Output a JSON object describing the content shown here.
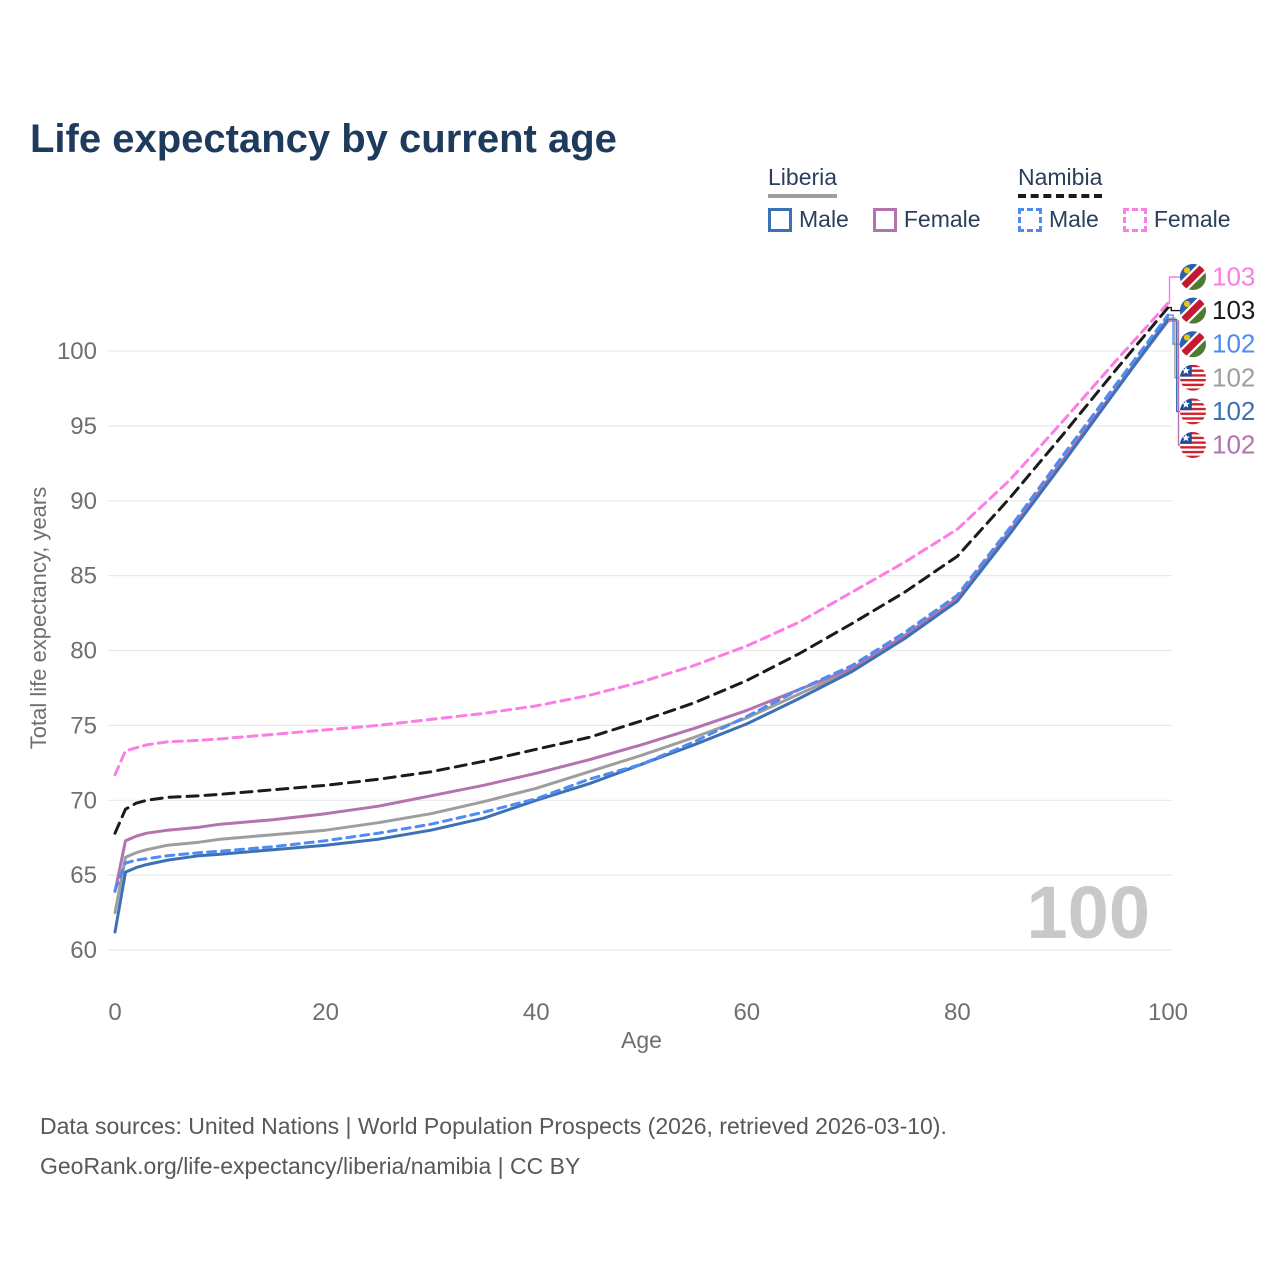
{
  "title": "Life expectancy by current age",
  "legend": {
    "groups": [
      {
        "label": "Liberia",
        "line_style": "solid",
        "line_color": "#9e9e9e",
        "items": [
          {
            "label": "Male",
            "color": "#3c72b5",
            "dash": false
          },
          {
            "label": "Female",
            "color": "#b273ae",
            "dash": false
          }
        ]
      },
      {
        "label": "Namibia",
        "line_style": "dashed",
        "line_color": "#1b1b1b",
        "items": [
          {
            "label": "Male",
            "color": "#4f8bf2",
            "dash": true
          },
          {
            "label": "Female",
            "color": "#fc7de4",
            "dash": true
          }
        ]
      }
    ]
  },
  "footer": {
    "line1": "Data sources: United Nations | World Population Prospects (2026, retrieved 2026-03-10).",
    "line2": "GeoRank.org/life-expectancy/liberia/namibia | CC BY"
  },
  "chart_data": {
    "type": "line",
    "title": "Life expectancy by current age",
    "xlabel": "Age",
    "ylabel": "Total life expectancy, years",
    "xlim": [
      0,
      100
    ],
    "ylim": [
      58.5,
      104.5
    ],
    "xticks": [
      0,
      20,
      40,
      60,
      80,
      100
    ],
    "yticks": [
      60,
      65,
      70,
      75,
      80,
      85,
      90,
      95,
      100
    ],
    "grid": "horizontal",
    "legend_position": "top-right",
    "watermark": "100",
    "x": [
      0,
      1,
      2,
      3,
      5,
      8,
      10,
      15,
      20,
      25,
      30,
      35,
      40,
      45,
      50,
      55,
      60,
      65,
      70,
      75,
      80,
      85,
      90,
      95,
      100
    ],
    "series": [
      {
        "id": "liberia-total",
        "name": "Liberia Both sexes",
        "color": "#9e9e9e",
        "dash": null,
        "values": [
          62.5,
          66.2,
          66.5,
          66.7,
          67.0,
          67.2,
          67.4,
          67.7,
          68.0,
          68.5,
          69.1,
          69.9,
          70.8,
          71.9,
          73.0,
          74.2,
          75.5,
          77.1,
          78.7,
          80.9,
          83.4,
          87.9,
          92.6,
          97.4,
          102.2
        ]
      },
      {
        "id": "liberia-female",
        "name": "Liberia Female",
        "color": "#b273ae",
        "dash": null,
        "values": [
          63.9,
          67.3,
          67.6,
          67.8,
          68.0,
          68.2,
          68.4,
          68.7,
          69.1,
          69.6,
          70.3,
          71.0,
          71.8,
          72.7,
          73.7,
          74.8,
          76.0,
          77.4,
          78.8,
          81.0,
          83.5,
          88.0,
          92.7,
          97.4,
          102.0
        ]
      },
      {
        "id": "liberia-male",
        "name": "Liberia Male",
        "color": "#3c72b5",
        "dash": null,
        "values": [
          61.2,
          65.2,
          65.5,
          65.7,
          66.0,
          66.3,
          66.4,
          66.7,
          67.0,
          67.4,
          68.0,
          68.8,
          70.0,
          71.1,
          72.4,
          73.7,
          75.1,
          76.8,
          78.6,
          80.8,
          83.3,
          87.8,
          92.5,
          97.3,
          102.1
        ]
      },
      {
        "id": "namibia-total",
        "name": "Namibia Both sexes",
        "color": "#1b1b1b",
        "dash": "11 7",
        "values": [
          67.8,
          69.4,
          69.8,
          70.0,
          70.2,
          70.3,
          70.4,
          70.7,
          71.0,
          71.4,
          71.9,
          72.6,
          73.4,
          74.2,
          75.3,
          76.5,
          78.0,
          79.8,
          81.8,
          83.9,
          86.3,
          90.2,
          94.4,
          98.7,
          102.9
        ]
      },
      {
        "id": "namibia-female",
        "name": "Namibia Female",
        "color": "#fc7de4",
        "dash": "9 6",
        "values": [
          71.7,
          73.3,
          73.5,
          73.7,
          73.9,
          74.0,
          74.1,
          74.4,
          74.7,
          75.0,
          75.4,
          75.8,
          76.3,
          77.0,
          77.9,
          79.0,
          80.3,
          81.9,
          83.9,
          85.9,
          88.1,
          91.4,
          95.3,
          99.3,
          103.2
        ]
      },
      {
        "id": "namibia-male",
        "name": "Namibia Male",
        "color": "#4f8bf2",
        "dash": "8 6",
        "values": [
          64.0,
          65.8,
          66.0,
          66.1,
          66.3,
          66.5,
          66.6,
          66.9,
          67.3,
          67.8,
          68.4,
          69.2,
          70.1,
          71.4,
          72.4,
          73.9,
          75.6,
          77.4,
          79.0,
          81.2,
          83.7,
          88.2,
          93.0,
          97.7,
          102.4
        ]
      }
    ],
    "end_labels": [
      {
        "series": "namibia-female",
        "flag": "namibia",
        "value": "103"
      },
      {
        "series": "namibia-total",
        "flag": "namibia",
        "value": "103"
      },
      {
        "series": "namibia-male",
        "flag": "namibia",
        "value": "102"
      },
      {
        "series": "liberia-total",
        "flag": "liberia",
        "value": "102"
      },
      {
        "series": "liberia-male",
        "flag": "liberia",
        "value": "102"
      },
      {
        "series": "liberia-female",
        "flag": "liberia",
        "value": "102"
      }
    ]
  }
}
